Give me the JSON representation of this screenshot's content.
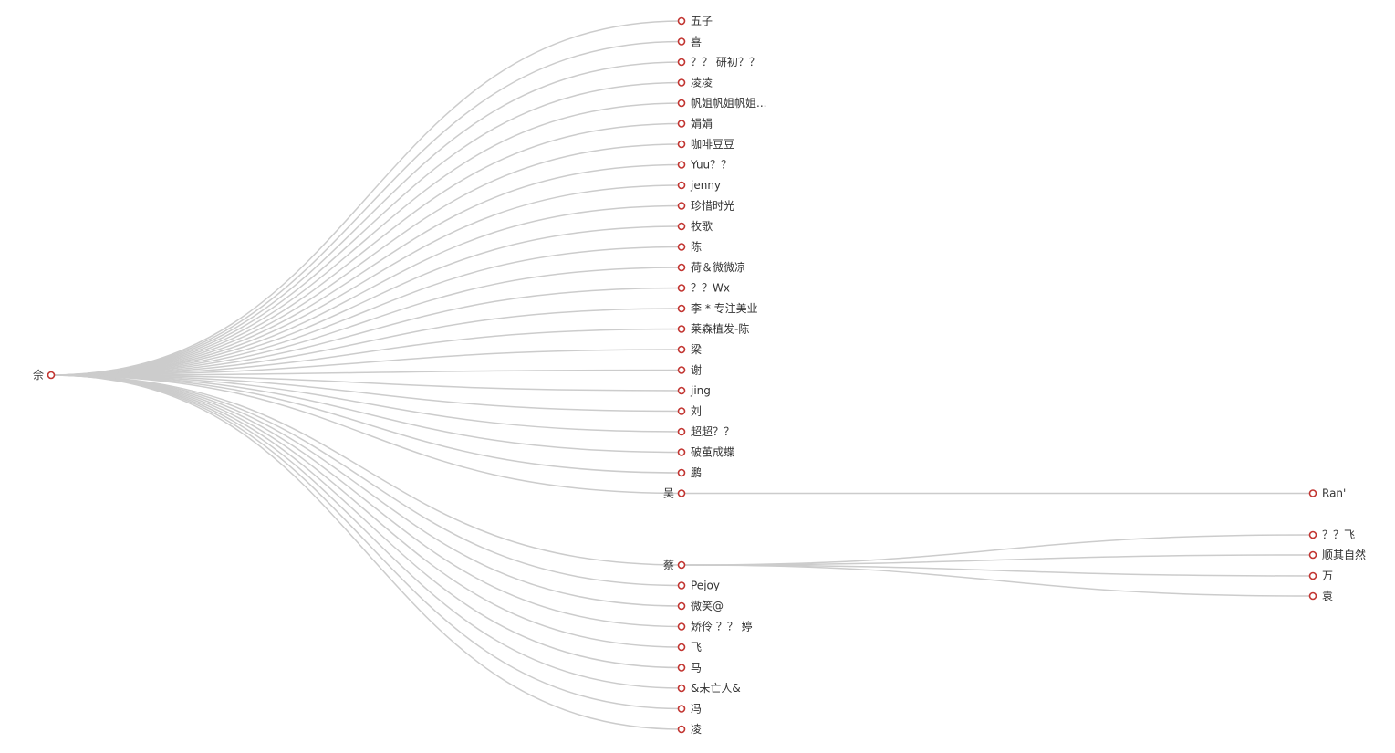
{
  "tree": {
    "root": {
      "name": "佘",
      "children": [
        {
          "name": "五子"
        },
        {
          "name": "喜"
        },
        {
          "name": "？？ 研初？？"
        },
        {
          "name": "凌凌"
        },
        {
          "name": "帆姐帆姐帆姐..."
        },
        {
          "name": "娟娟"
        },
        {
          "name": "咖啡豆豆"
        },
        {
          "name": "Yuu？？"
        },
        {
          "name": "jenny"
        },
        {
          "name": "珍惜时光"
        },
        {
          "name": "牧歌"
        },
        {
          "name": "陈"
        },
        {
          "name": "荷＆微微凉"
        },
        {
          "name": "？？Wx"
        },
        {
          "name": "李 * 专注美业"
        },
        {
          "name": "莱森植发-陈"
        },
        {
          "name": "梁"
        },
        {
          "name": "谢"
        },
        {
          "name": "jing"
        },
        {
          "name": "刘"
        },
        {
          "name": "超超？？"
        },
        {
          "name": "破茧成蝶"
        },
        {
          "name": "鹏"
        },
        {
          "name": "吴",
          "children": [
            {
              "name": "Ran'"
            }
          ]
        },
        {
          "name": "蔡",
          "children": [
            {
              "name": "？？飞"
            },
            {
              "name": "顺其自然"
            },
            {
              "name": "万"
            },
            {
              "name": "袁"
            }
          ]
        },
        {
          "name": "Pejoy"
        },
        {
          "name": "微笑@"
        },
        {
          "name": "娇伶 ？？ 婷"
        },
        {
          "name": "飞"
        },
        {
          "name": "马"
        },
        {
          "name": "&未亡人&"
        },
        {
          "name": "冯"
        },
        {
          "name": "凌"
        }
      ]
    }
  },
  "colors": {
    "link": "#cccccc",
    "node_stroke": "#c23531",
    "node_fill": "#ffffff",
    "label": "#333333"
  }
}
